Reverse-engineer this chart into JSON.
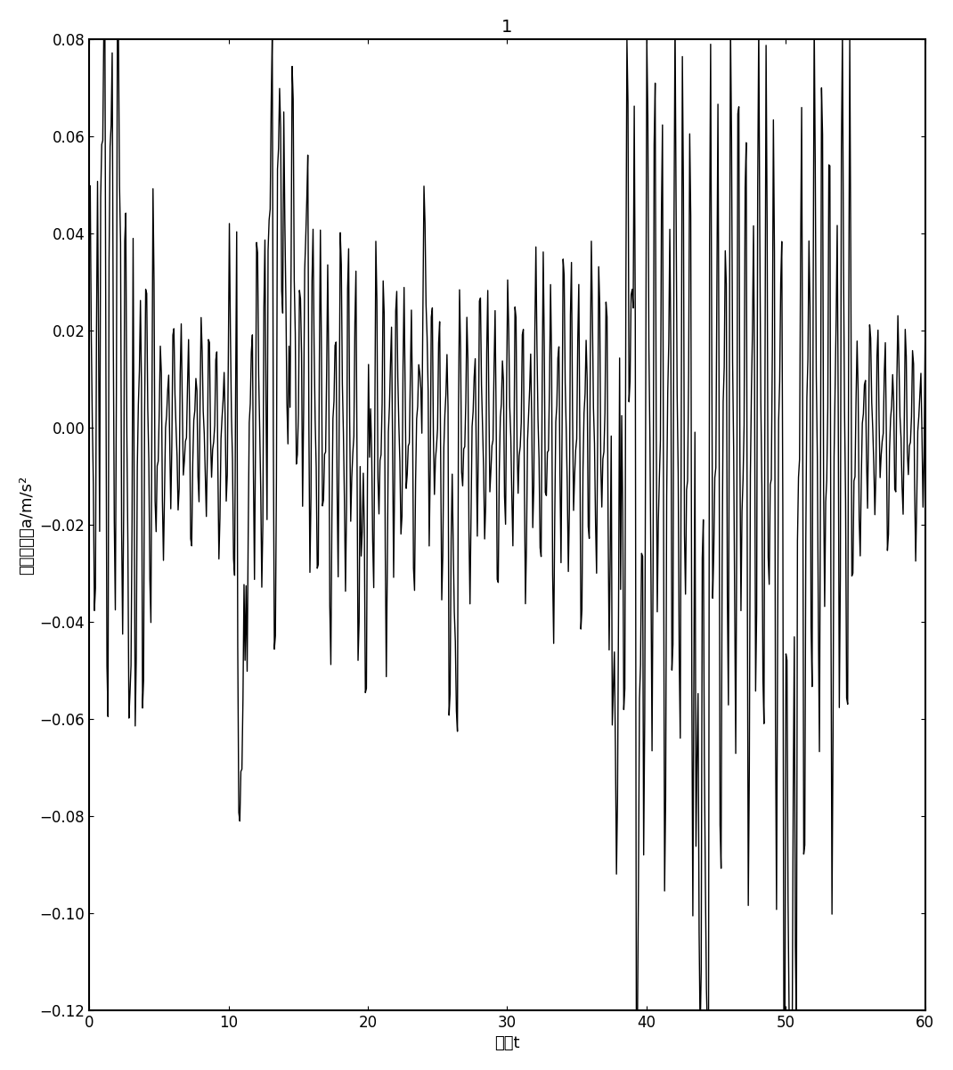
{
  "title": "1",
  "xlabel": "时间t",
  "ylabel": "振动加速度a/m/s²",
  "xlim": [
    0,
    60
  ],
  "ylim": [
    -0.12,
    0.08
  ],
  "xticks": [
    0,
    10,
    20,
    30,
    40,
    50,
    60
  ],
  "yticks": [
    -0.12,
    -0.1,
    -0.08,
    -0.06,
    -0.04,
    -0.02,
    0,
    0.02,
    0.04,
    0.06,
    0.08
  ],
  "line_color": "#000000",
  "line_width": 1.0,
  "background_color": "#ffffff",
  "title_fontsize": 14,
  "label_fontsize": 13,
  "tick_fontsize": 12
}
